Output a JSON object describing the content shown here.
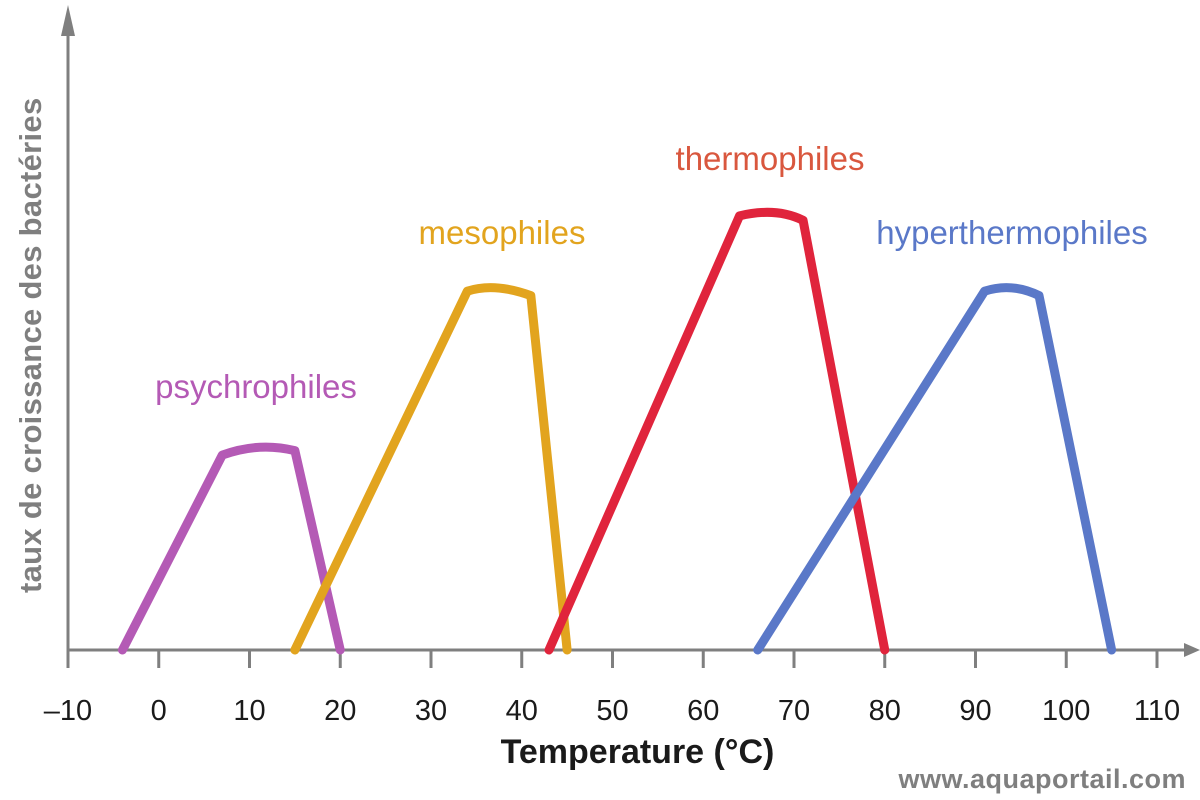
{
  "chart_data": {
    "type": "line",
    "ylabel": "taux de croissance des bactéries",
    "xlabel": "Temperature (°C)",
    "xlim": [
      -10,
      110
    ],
    "xticks": [
      -10,
      0,
      10,
      20,
      30,
      40,
      50,
      60,
      70,
      80,
      90,
      100,
      110
    ],
    "xtick_labels": [
      "–10",
      "0",
      "10",
      "20",
      "30",
      "40",
      "50",
      "60",
      "70",
      "80",
      "90",
      "100",
      "110"
    ],
    "ylim": [
      0,
      100
    ],
    "grid": false,
    "series": [
      {
        "name": "psychrophiles",
        "color": "#b45ab5",
        "points": [
          [
            -4,
            0
          ],
          [
            7,
            44
          ],
          [
            11,
            47
          ],
          [
            15,
            45
          ],
          [
            20,
            0
          ]
        ]
      },
      {
        "name": "mesophiles",
        "color": "#e2a41e",
        "points": [
          [
            15,
            0
          ],
          [
            34,
            81
          ],
          [
            37,
            83
          ],
          [
            41,
            80
          ],
          [
            45,
            0
          ]
        ]
      },
      {
        "name": "thermophiles",
        "color": "#e0243c",
        "points": [
          [
            43,
            0
          ],
          [
            64,
            98
          ],
          [
            68,
            100
          ],
          [
            71,
            97
          ],
          [
            80,
            0
          ]
        ]
      },
      {
        "name": "hyperthermophiles",
        "color": "#5a78c8",
        "points": [
          [
            66,
            0
          ],
          [
            91,
            81
          ],
          [
            94,
            83
          ],
          [
            97,
            80
          ],
          [
            105,
            0
          ]
        ]
      }
    ]
  },
  "watermark": "www.aquaportail.com"
}
